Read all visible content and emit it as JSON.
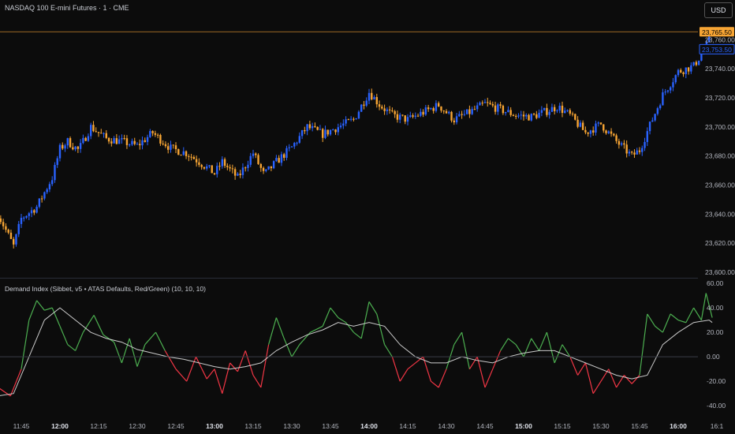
{
  "header": {
    "title": "NASDAQ 100 E-mini Futures · 1 · CME",
    "currency": "USD"
  },
  "indicator": {
    "title": "Demand Index (Sibbet, v5 • ATAS Defaults, Red/Green) (10, 10, 10)"
  },
  "colors": {
    "background": "#0c0c0c",
    "up_candle": "#2962ff",
    "down_candle": "#f7a534",
    "di_positive": "#4caf50",
    "di_negative": "#f23645",
    "signal": "#e0e0e0",
    "last_price_tag": "#f7a534",
    "second_price_tag": "#2962ff"
  },
  "chart_data": [
    {
      "type": "candlestick",
      "title": "NASDAQ 100 E-mini Futures · 1 · CME",
      "x_tick_labels": [
        "11:45",
        "12:00",
        "12:15",
        "12:30",
        "12:45",
        "13:00",
        "13:15",
        "13:30",
        "13:45",
        "14:00",
        "14:15",
        "14:30",
        "14:45",
        "15:00",
        "15:15",
        "15:30",
        "15:45",
        "16:00",
        "16:1"
      ],
      "x_tick_bold": [
        "12:00",
        "13:00",
        "14:00",
        "15:00",
        "16:00"
      ],
      "y_tick_labels": [
        "23,760.00",
        "23,740.00",
        "23,720.00",
        "23,700.00",
        "23,680.00",
        "23,660.00",
        "23,640.00",
        "23,620.00",
        "23,600.00"
      ],
      "ylim": [
        23600,
        23770
      ],
      "last_price": "23,765.50",
      "second_price": "23,753.50",
      "close_path": [
        [
          11.6,
          23640
        ],
        [
          11.7,
          23618
        ],
        [
          11.75,
          23637
        ],
        [
          11.85,
          23645
        ],
        [
          11.95,
          23665
        ],
        [
          12.0,
          23685
        ],
        [
          12.05,
          23690
        ],
        [
          12.12,
          23684
        ],
        [
          12.2,
          23700
        ],
        [
          12.3,
          23692
        ],
        [
          12.4,
          23690
        ],
        [
          12.5,
          23687
        ],
        [
          12.6,
          23696
        ],
        [
          12.72,
          23685
        ],
        [
          12.82,
          23682
        ],
        [
          12.9,
          23676
        ],
        [
          13.0,
          23668
        ],
        [
          13.05,
          23676
        ],
        [
          13.15,
          23665
        ],
        [
          13.25,
          23682
        ],
        [
          13.32,
          23667
        ],
        [
          13.4,
          23676
        ],
        [
          13.5,
          23686
        ],
        [
          13.6,
          23700
        ],
        [
          13.7,
          23695
        ],
        [
          13.8,
          23700
        ],
        [
          13.9,
          23705
        ],
        [
          14.0,
          23724
        ],
        [
          14.07,
          23715
        ],
        [
          14.15,
          23708
        ],
        [
          14.25,
          23705
        ],
        [
          14.35,
          23710
        ],
        [
          14.45,
          23715
        ],
        [
          14.55,
          23705
        ],
        [
          14.65,
          23710
        ],
        [
          14.75,
          23716
        ],
        [
          14.85,
          23712
        ],
        [
          14.95,
          23708
        ],
        [
          15.05,
          23707
        ],
        [
          15.15,
          23711
        ],
        [
          15.22,
          23714
        ],
        [
          15.3,
          23708
        ],
        [
          15.4,
          23696
        ],
        [
          15.5,
          23702
        ],
        [
          15.6,
          23690
        ],
        [
          15.7,
          23680
        ],
        [
          15.75,
          23684
        ],
        [
          15.82,
          23702
        ],
        [
          15.9,
          23722
        ],
        [
          16.0,
          23738
        ],
        [
          16.1,
          23742
        ],
        [
          16.18,
          23755
        ],
        [
          16.22,
          23766
        ]
      ]
    },
    {
      "type": "line",
      "title": "Demand Index (Sibbet, v5 • ATAS Defaults, Red/Green) (10, 10, 10)",
      "y_tick_labels": [
        "60.00",
        "40.00",
        "20.00",
        "0.00",
        "-20.00",
        "-40.00"
      ],
      "ylim": [
        -45,
        62
      ],
      "series": [
        {
          "values": [
            [
              11.6,
              -25
            ],
            [
              11.68,
              -32
            ],
            [
              11.75,
              -10
            ],
            [
              11.8,
              30
            ],
            [
              11.85,
              46
            ],
            [
              11.9,
              38
            ],
            [
              11.95,
              40
            ],
            [
              12.0,
              25
            ],
            [
              12.05,
              10
            ],
            [
              12.1,
              5
            ],
            [
              12.15,
              20
            ],
            [
              12.22,
              34
            ],
            [
              12.28,
              18
            ],
            [
              12.35,
              12
            ],
            [
              12.4,
              -5
            ],
            [
              12.45,
              15
            ],
            [
              12.5,
              -8
            ],
            [
              12.55,
              10
            ],
            [
              12.62,
              20
            ],
            [
              12.68,
              5
            ],
            [
              12.75,
              -10
            ],
            [
              12.82,
              -20
            ],
            [
              12.88,
              0
            ],
            [
              12.95,
              -18
            ],
            [
              13.0,
              -10
            ],
            [
              13.05,
              -30
            ],
            [
              13.1,
              -5
            ],
            [
              13.15,
              -12
            ],
            [
              13.2,
              5
            ],
            [
              13.25,
              -15
            ],
            [
              13.3,
              -25
            ],
            [
              13.35,
              10
            ],
            [
              13.4,
              32
            ],
            [
              13.45,
              15
            ],
            [
              13.5,
              0
            ],
            [
              13.55,
              10
            ],
            [
              13.62,
              20
            ],
            [
              13.7,
              25
            ],
            [
              13.75,
              40
            ],
            [
              13.8,
              32
            ],
            [
              13.85,
              28
            ],
            [
              13.9,
              20
            ],
            [
              13.95,
              15
            ],
            [
              14.0,
              45
            ],
            [
              14.05,
              35
            ],
            [
              14.1,
              10
            ],
            [
              14.15,
              0
            ],
            [
              14.2,
              -20
            ],
            [
              14.25,
              -10
            ],
            [
              14.3,
              -5
            ],
            [
              14.35,
              0
            ],
            [
              14.4,
              -20
            ],
            [
              14.45,
              -25
            ],
            [
              14.5,
              -10
            ],
            [
              14.55,
              10
            ],
            [
              14.6,
              20
            ],
            [
              14.65,
              -10
            ],
            [
              14.7,
              0
            ],
            [
              14.75,
              -25
            ],
            [
              14.8,
              -10
            ],
            [
              14.85,
              5
            ],
            [
              14.9,
              15
            ],
            [
              14.95,
              10
            ],
            [
              15.0,
              0
            ],
            [
              15.05,
              15
            ],
            [
              15.1,
              5
            ],
            [
              15.15,
              20
            ],
            [
              15.2,
              -5
            ],
            [
              15.25,
              10
            ],
            [
              15.3,
              0
            ],
            [
              15.35,
              -15
            ],
            [
              15.4,
              -5
            ],
            [
              15.45,
              -30
            ],
            [
              15.5,
              -20
            ],
            [
              15.55,
              -10
            ],
            [
              15.6,
              -25
            ],
            [
              15.65,
              -15
            ],
            [
              15.7,
              -22
            ],
            [
              15.75,
              -15
            ],
            [
              15.8,
              35
            ],
            [
              15.85,
              25
            ],
            [
              15.9,
              20
            ],
            [
              15.95,
              35
            ],
            [
              16.0,
              30
            ],
            [
              16.05,
              28
            ],
            [
              16.1,
              40
            ],
            [
              16.15,
              30
            ],
            [
              16.18,
              52
            ],
            [
              16.22,
              32
            ]
          ]
        },
        {
          "values": [
            [
              11.6,
              -32
            ],
            [
              11.7,
              -30
            ],
            [
              11.8,
              0
            ],
            [
              11.9,
              30
            ],
            [
              12.0,
              40
            ],
            [
              12.1,
              30
            ],
            [
              12.2,
              20
            ],
            [
              12.3,
              15
            ],
            [
              12.4,
              12
            ],
            [
              12.5,
              6
            ],
            [
              12.6,
              3
            ],
            [
              12.7,
              0
            ],
            [
              12.8,
              -2
            ],
            [
              12.9,
              -5
            ],
            [
              13.0,
              -8
            ],
            [
              13.1,
              -10
            ],
            [
              13.2,
              -8
            ],
            [
              13.3,
              -5
            ],
            [
              13.4,
              5
            ],
            [
              13.5,
              12
            ],
            [
              13.6,
              18
            ],
            [
              13.7,
              22
            ],
            [
              13.8,
              28
            ],
            [
              13.9,
              25
            ],
            [
              14.0,
              28
            ],
            [
              14.1,
              25
            ],
            [
              14.2,
              10
            ],
            [
              14.3,
              0
            ],
            [
              14.4,
              -5
            ],
            [
              14.5,
              -5
            ],
            [
              14.6,
              0
            ],
            [
              14.7,
              -3
            ],
            [
              14.8,
              -5
            ],
            [
              14.9,
              0
            ],
            [
              15.0,
              3
            ],
            [
              15.1,
              5
            ],
            [
              15.2,
              5
            ],
            [
              15.3,
              0
            ],
            [
              15.4,
              -5
            ],
            [
              15.5,
              -10
            ],
            [
              15.6,
              -15
            ],
            [
              15.7,
              -18
            ],
            [
              15.8,
              -15
            ],
            [
              15.9,
              10
            ],
            [
              16.0,
              20
            ],
            [
              16.1,
              28
            ],
            [
              16.2,
              30
            ],
            [
              16.22,
              28
            ]
          ]
        }
      ]
    }
  ]
}
